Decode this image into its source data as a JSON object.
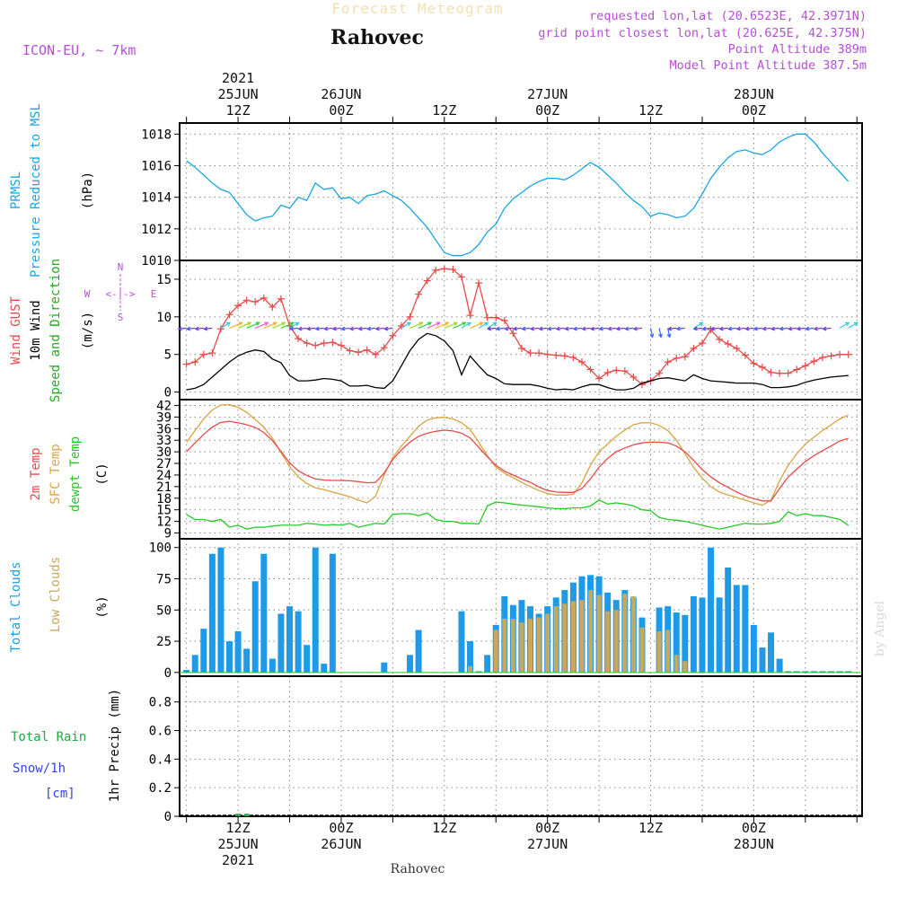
{
  "header": {
    "title_faded": "Forecast Meteogram",
    "location": "Rahovec",
    "model": "ICON-EU, ~ 7km",
    "requested": "requested lon,lat (20.6523E, 42.3971N)",
    "grid_point": "grid point closest lon,lat (20.625E, 42.375N)",
    "point_altitude": "Point Altitude 389m",
    "model_altitude": "Model Point Altitude 387.5m",
    "footer_location": "Rahovec",
    "credit": "by Angel"
  },
  "colors": {
    "pressure": "#1aa4e8",
    "gust": "#e84a4a",
    "wind": "#000000",
    "temp2m": "#e84a4a",
    "sfctemp": "#d9a441",
    "dewpt": "#22cc22",
    "total_clouds": "#1e9be8",
    "low_clouds": "#c8a85a",
    "rain": "#22aa44",
    "snow": "#3344dd",
    "magenta": "#b44fd4",
    "grid": "#888888"
  },
  "time_axis": {
    "top_labels": [
      {
        "t": 12,
        "lines": [
          "2021",
          "25JUN",
          "12Z"
        ]
      },
      {
        "t": 24,
        "lines": [
          "26JUN",
          "00Z"
        ]
      },
      {
        "t": 36,
        "lines": [
          "12Z"
        ]
      },
      {
        "t": 48,
        "lines": [
          "27JUN",
          "00Z"
        ]
      },
      {
        "t": 60,
        "lines": [
          "12Z"
        ]
      },
      {
        "t": 72,
        "lines": [
          "28JUN",
          "00Z"
        ]
      }
    ],
    "bottom_labels": [
      {
        "t": 12,
        "lines": [
          "12Z",
          "25JUN",
          "2021"
        ]
      },
      {
        "t": 24,
        "lines": [
          "00Z",
          "26JUN"
        ]
      },
      {
        "t": 36,
        "lines": [
          "12Z"
        ]
      },
      {
        "t": 48,
        "lines": [
          "00Z",
          "27JUN"
        ]
      },
      {
        "t": 60,
        "lines": [
          "12Z"
        ]
      },
      {
        "t": 72,
        "lines": [
          "00Z",
          "28JUN"
        ]
      }
    ]
  },
  "chart_data": [
    {
      "type": "line",
      "panel": "pressure",
      "labels": [
        "PRMSL",
        "Pressure Reduced to MSL",
        "(hPa)"
      ],
      "ylim": [
        1010,
        1018.7
      ],
      "yticks": [
        1010,
        1012,
        1014,
        1016,
        1018
      ],
      "x": [
        6,
        7,
        8,
        9,
        10,
        11,
        12,
        13,
        14,
        15,
        16,
        17,
        18,
        19,
        20,
        21,
        22,
        23,
        24,
        25,
        26,
        27,
        28,
        29,
        30,
        31,
        32,
        33,
        34,
        35,
        36,
        37,
        38,
        39,
        40,
        41,
        42,
        43,
        44,
        45,
        46,
        47,
        48,
        49,
        50,
        51,
        52,
        53,
        54,
        55,
        56,
        57,
        58,
        59,
        60,
        61,
        62,
        63,
        64,
        65,
        66,
        67,
        68,
        69,
        70,
        71,
        72,
        73,
        74,
        75,
        76,
        77,
        78,
        79,
        80,
        81,
        82,
        83
      ],
      "values": [
        1016.3,
        1015.9,
        1015.4,
        1014.9,
        1014.5,
        1014.3,
        1013.6,
        1012.9,
        1012.5,
        1012.7,
        1012.8,
        1013.5,
        1013.3,
        1014.0,
        1013.8,
        1014.9,
        1014.5,
        1014.6,
        1013.9,
        1014.0,
        1013.6,
        1014.1,
        1014.2,
        1014.4,
        1014.1,
        1013.8,
        1013.3,
        1012.7,
        1012.1,
        1011.3,
        1010.5,
        1010.3,
        1010.3,
        1010.5,
        1011.0,
        1011.8,
        1012.3,
        1013.3,
        1013.9,
        1014.3,
        1014.7,
        1015.0,
        1015.2,
        1015.2,
        1015.1,
        1015.4,
        1015.8,
        1016.2,
        1015.9,
        1015.4,
        1014.9,
        1014.3,
        1013.8,
        1013.4,
        1012.8,
        1013.0,
        1012.9,
        1012.7,
        1012.8,
        1013.3,
        1014.2,
        1015.2,
        1015.9,
        1016.5,
        1016.9,
        1017.0,
        1016.8,
        1016.7,
        1017.0,
        1017.5,
        1017.8,
        1018.0,
        1018.0,
        1017.5,
        1016.8,
        1016.2,
        1015.6,
        1015.0
      ]
    },
    {
      "type": "line",
      "panel": "wind",
      "labels": [
        "Wind GUST",
        "10m Wind",
        "Speed and Direction",
        "(m/s)"
      ],
      "compass": {
        "n": "N",
        "s": "S",
        "w": "W",
        "e": "E"
      },
      "ylim": [
        -1,
        17.5
      ],
      "yticks": [
        0,
        5,
        10,
        15
      ],
      "x": [
        6,
        7,
        8,
        9,
        10,
        11,
        12,
        13,
        14,
        15,
        16,
        17,
        18,
        19,
        20,
        21,
        22,
        23,
        24,
        25,
        26,
        27,
        28,
        29,
        30,
        31,
        32,
        33,
        34,
        35,
        36,
        37,
        38,
        39,
        40,
        41,
        42,
        43,
        44,
        45,
        46,
        47,
        48,
        49,
        50,
        51,
        52,
        53,
        54,
        55,
        56,
        57,
        58,
        59,
        60,
        61,
        62,
        63,
        64,
        65,
        66,
        67,
        68,
        69,
        70,
        71,
        72,
        73,
        74,
        75,
        76,
        77,
        78,
        79,
        80,
        81,
        82,
        83
      ],
      "series": [
        {
          "name": "Wind GUST",
          "values": [
            3.7,
            4.0,
            5.0,
            5.2,
            8.4,
            10.3,
            11.5,
            12.2,
            12.0,
            12.5,
            11.3,
            12.4,
            8.8,
            7.1,
            6.5,
            6.2,
            6.5,
            6.6,
            6.2,
            5.5,
            5.3,
            5.6,
            5.0,
            5.9,
            7.5,
            8.8,
            10.0,
            13.0,
            14.8,
            16.2,
            16.4,
            16.3,
            15.3,
            10.2,
            14.5,
            9.9,
            9.9,
            9.5,
            7.8,
            5.8,
            5.2,
            5.2,
            5.0,
            4.9,
            4.8,
            4.6,
            4.0,
            3.0,
            1.8,
            2.6,
            2.9,
            2.8,
            2.0,
            1.0,
            1.5,
            2.5,
            4.0,
            4.5,
            4.7,
            5.8,
            6.5,
            8.3,
            7.0,
            6.4,
            5.8,
            4.9,
            3.8,
            3.3,
            2.6,
            2.5,
            2.5,
            3.0,
            3.5,
            4.1,
            4.6,
            4.8,
            5.0,
            5.0
          ]
        },
        {
          "name": "10m Wind",
          "values": [
            0.3,
            0.5,
            1.0,
            2.0,
            3.0,
            4.0,
            4.8,
            5.3,
            5.6,
            5.4,
            4.4,
            3.9,
            2.2,
            1.5,
            1.5,
            1.6,
            1.8,
            1.7,
            1.5,
            0.8,
            0.8,
            0.9,
            0.6,
            0.5,
            1.5,
            3.5,
            5.5,
            7.0,
            7.8,
            7.5,
            6.8,
            5.5,
            2.3,
            4.8,
            3.5,
            2.3,
            1.8,
            1.1,
            1.0,
            1.0,
            1.0,
            0.8,
            0.5,
            0.3,
            0.4,
            0.3,
            0.7,
            1.0,
            1.0,
            0.6,
            0.3,
            0.3,
            0.5,
            1.2,
            1.5,
            1.8,
            1.9,
            1.7,
            1.5,
            2.3,
            1.8,
            1.5,
            1.4,
            1.3,
            1.2,
            1.2,
            1.2,
            1.0,
            0.6,
            0.6,
            0.7,
            0.9,
            1.3,
            1.6,
            1.8,
            2.0,
            2.1,
            2.2
          ]
        }
      ]
    },
    {
      "type": "line",
      "panel": "temperature",
      "labels": [
        "2m Temp",
        "SFC Temp",
        "dewpt Temp",
        "(C)"
      ],
      "ylim": [
        7.5,
        43.5
      ],
      "yticks": [
        9,
        12,
        15,
        18,
        21,
        24,
        27,
        30,
        33,
        36,
        39,
        42
      ],
      "x": [
        6,
        7,
        8,
        9,
        10,
        11,
        12,
        13,
        14,
        15,
        16,
        17,
        18,
        19,
        20,
        21,
        22,
        23,
        24,
        25,
        26,
        27,
        28,
        29,
        30,
        31,
        32,
        33,
        34,
        35,
        36,
        37,
        38,
        39,
        40,
        41,
        42,
        43,
        44,
        45,
        46,
        47,
        48,
        49,
        50,
        51,
        52,
        53,
        54,
        55,
        56,
        57,
        58,
        59,
        60,
        61,
        62,
        63,
        64,
        65,
        66,
        67,
        68,
        69,
        70,
        71,
        72,
        73,
        74,
        75,
        76,
        77,
        78,
        79,
        80,
        81,
        82,
        83
      ],
      "series": [
        {
          "name": "2m Temp",
          "values": [
            30.0,
            32.3,
            34.5,
            36.4,
            37.6,
            37.9,
            37.5,
            37.0,
            36.3,
            35.0,
            32.9,
            30.1,
            27.2,
            25.1,
            23.9,
            23.0,
            22.7,
            22.6,
            22.6,
            22.5,
            22.3,
            22.0,
            22.1,
            24.5,
            28.0,
            30.5,
            32.5,
            34.0,
            34.8,
            35.3,
            35.6,
            35.4,
            34.8,
            33.6,
            31.2,
            28.7,
            26.5,
            25.0,
            24.0,
            23.0,
            22.1,
            20.9,
            20.0,
            19.6,
            19.5,
            19.5,
            20.5,
            23.0,
            26.0,
            28.3,
            30.0,
            31.0,
            31.8,
            32.3,
            32.5,
            32.5,
            32.3,
            31.5,
            30.0,
            27.8,
            25.4,
            23.5,
            22.0,
            20.8,
            19.6,
            18.6,
            17.9,
            17.3,
            17.3,
            20.5,
            23.5,
            25.5,
            27.5,
            29.0,
            30.3,
            31.5,
            32.8,
            33.5
          ]
        },
        {
          "name": "SFC Temp",
          "values": [
            32.5,
            35.5,
            38.5,
            40.8,
            42.1,
            42.2,
            41.5,
            40.2,
            38.4,
            36.4,
            33.5,
            29.8,
            26.2,
            23.5,
            21.8,
            20.7,
            20.2,
            19.6,
            19.0,
            18.4,
            17.5,
            16.8,
            18.5,
            24.0,
            28.5,
            31.5,
            34.0,
            36.6,
            38.2,
            38.8,
            38.9,
            38.5,
            37.5,
            35.8,
            32.5,
            29.0,
            26.0,
            24.5,
            23.3,
            22.1,
            21.0,
            20.0,
            19.2,
            18.8,
            18.8,
            19.0,
            22.0,
            26.5,
            30.0,
            32.0,
            34.0,
            35.6,
            37.0,
            37.5,
            37.5,
            36.8,
            35.5,
            33.0,
            29.5,
            26.0,
            23.2,
            21.0,
            19.6,
            18.8,
            18.2,
            17.5,
            16.8,
            16.2,
            17.5,
            22.5,
            26.5,
            29.5,
            32.0,
            33.8,
            35.5,
            37.0,
            38.5,
            39.5
          ]
        },
        {
          "name": "dewpt Temp",
          "values": [
            13.8,
            12.5,
            12.5,
            12.0,
            12.5,
            10.5,
            11.0,
            10.0,
            10.5,
            10.5,
            10.8,
            11.0,
            11.0,
            11.0,
            11.5,
            11.3,
            11.0,
            11.2,
            11.0,
            11.5,
            10.5,
            11.0,
            11.5,
            11.3,
            13.8,
            14.0,
            14.0,
            13.5,
            14.2,
            12.5,
            12.0,
            12.0,
            11.5,
            11.5,
            11.3,
            16.0,
            17.0,
            16.8,
            16.5,
            16.2,
            16.0,
            15.8,
            15.5,
            15.3,
            15.3,
            15.5,
            15.5,
            16.0,
            17.5,
            16.5,
            16.8,
            16.5,
            16.0,
            15.0,
            14.8,
            13.0,
            12.5,
            12.3,
            12.0,
            11.5,
            11.0,
            10.5,
            10.0,
            10.5,
            11.0,
            11.5,
            11.3,
            11.3,
            11.5,
            12.0,
            14.5,
            13.5,
            14.0,
            13.5,
            13.5,
            13.0,
            12.5,
            11.0
          ]
        }
      ]
    },
    {
      "type": "bar",
      "panel": "clouds",
      "labels": [
        "Total Clouds",
        "Low Clouds",
        "(%)"
      ],
      "ylim": [
        -3,
        107
      ],
      "yticks": [
        0,
        25,
        50,
        75,
        100
      ],
      "x": [
        6,
        7,
        8,
        9,
        10,
        11,
        12,
        13,
        14,
        15,
        16,
        17,
        18,
        19,
        20,
        21,
        22,
        23,
        24,
        25,
        26,
        27,
        28,
        29,
        30,
        31,
        32,
        33,
        34,
        35,
        36,
        37,
        38,
        39,
        40,
        41,
        42,
        43,
        44,
        45,
        46,
        47,
        48,
        49,
        50,
        51,
        52,
        53,
        54,
        55,
        56,
        57,
        58,
        59,
        60,
        61,
        62,
        63,
        64,
        65,
        66,
        67,
        68,
        69,
        70,
        71,
        72,
        73,
        74,
        75,
        76,
        77,
        78,
        79,
        80,
        81,
        82,
        83
      ],
      "series": [
        {
          "name": "Total Clouds",
          "values": [
            2,
            14,
            35,
            95,
            100,
            25,
            33,
            19,
            73,
            95,
            11,
            47,
            53,
            49,
            22,
            100,
            7,
            95,
            0,
            0,
            0,
            0,
            0,
            8,
            0,
            0,
            14,
            34,
            0,
            0,
            0,
            0,
            49,
            25,
            1,
            14,
            38,
            61,
            54,
            58,
            53,
            47,
            53,
            60,
            66,
            72,
            77,
            78,
            77,
            64,
            58,
            66,
            60,
            44,
            0,
            52,
            53,
            48,
            46,
            61,
            60,
            100,
            60,
            84,
            70,
            70,
            38,
            20,
            32,
            11,
            1,
            1,
            1,
            1,
            1,
            1,
            1,
            1
          ]
        },
        {
          "name": "Low Clouds",
          "values": [
            0,
            0,
            0,
            0,
            0,
            0,
            0,
            0,
            0,
            0,
            0,
            0,
            0,
            0,
            0,
            0,
            0,
            0,
            0,
            0,
            0,
            0,
            0,
            0,
            0,
            0,
            0,
            0,
            0,
            0,
            0,
            0,
            0,
            5,
            0,
            0,
            34,
            43,
            43,
            40,
            43,
            44,
            47,
            53,
            55,
            57,
            58,
            66,
            62,
            49,
            50,
            63,
            61,
            36,
            0,
            33,
            34,
            14,
            9,
            0,
            0,
            0,
            0,
            0,
            0,
            0,
            0,
            0,
            0,
            0,
            0,
            0,
            0,
            0,
            0,
            0,
            0,
            0
          ]
        }
      ]
    },
    {
      "type": "bar",
      "panel": "precip",
      "labels": [
        "Total Rain",
        "Snow/1h",
        "[cm]",
        "1hr Precip (mm)"
      ],
      "ylim": [
        0,
        0.98
      ],
      "yticks": [
        0,
        0.2,
        0.4,
        0.6,
        0.8
      ],
      "ytick_labels": [
        "0",
        "0.2",
        "0.4",
        "0.6",
        "0.8"
      ],
      "x": [
        12,
        13
      ],
      "series": [
        {
          "name": "Total Rain",
          "values": [
            0.005,
            0.005
          ]
        }
      ]
    }
  ]
}
